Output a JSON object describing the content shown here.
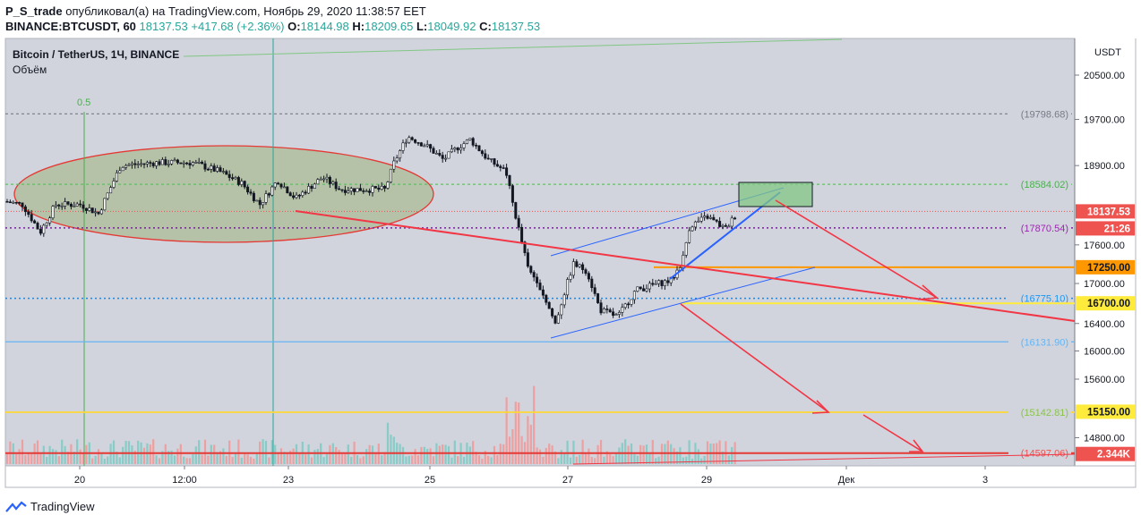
{
  "header": {
    "author": "P_S_trade",
    "published": "опубликовал(а) на TradingView.com, Ноябрь 29, 2020 11:38:57 EET",
    "symbol": "BINANCE:BTCUSDT, 60",
    "last": "18137.53",
    "change": "+417.68 (+2.36%)",
    "o_label": "O:",
    "o": "18144.98",
    "h_label": "H:",
    "h": "18209.65",
    "l_label": "L:",
    "l": "18049.92",
    "c_label": "C:",
    "c": "18137.53"
  },
  "chart": {
    "title": "Bitcoin / TetherUS, 1Ч, BINANCE",
    "volume_label": "Объём",
    "fib_label": "0.5",
    "currency": "USDT",
    "colors": {
      "up": "#26a69a",
      "down": "#ef5350",
      "bg": "#d1d4dc",
      "red": "#ff0000",
      "orange": "#ff9800",
      "yellow": "#ffeb3b",
      "blue": "#2962ff",
      "purple": "#9c27b0",
      "green": "#4caf50"
    }
  },
  "price_axis": {
    "ticks": [
      "20500.00",
      "19700.00",
      "18900.00",
      "17600.00",
      "17000.00",
      "16400.00",
      "16000.00",
      "15600.00",
      "14800.00"
    ],
    "levels": [
      {
        "label": "(19798.68)",
        "value": 19798.68,
        "color": "#787b86"
      },
      {
        "label": "(18584.02)",
        "value": 18584.02,
        "color": "#4caf50"
      },
      {
        "label": "(17870.54)",
        "value": 17870.54,
        "color": "#9c27b0"
      },
      {
        "label": "(16775.10)",
        "value": 16775.1,
        "color": "#2196f3"
      },
      {
        "label": "(16131.90)",
        "value": 16131.9,
        "color": "#64b5f6"
      },
      {
        "label": "(15142.81)",
        "value": 15142.81,
        "color": "#8bc34a"
      },
      {
        "label": "(14597.06)",
        "value": 14597.06,
        "color": "#ef5350"
      }
    ],
    "badges": [
      {
        "label": "18137.53",
        "bg": "#ef5350",
        "fg": "#ffffff"
      },
      {
        "label": "21:26",
        "bg": "#ef5350",
        "fg": "#ffffff"
      },
      {
        "label": "17250.00",
        "bg": "#ff9800",
        "fg": "#131722"
      },
      {
        "label": "16700.00",
        "bg": "#ffeb3b",
        "fg": "#131722"
      },
      {
        "label": "15150.00",
        "bg": "#ffeb3b",
        "fg": "#131722"
      },
      {
        "label": "2.344K",
        "bg": "#ef5350",
        "fg": "#ffffff"
      }
    ]
  },
  "time_axis": [
    "20",
    "12:00",
    "23",
    "25",
    "27",
    "29",
    "Дек",
    "3"
  ],
  "footer": {
    "brand": "TradingView"
  }
}
